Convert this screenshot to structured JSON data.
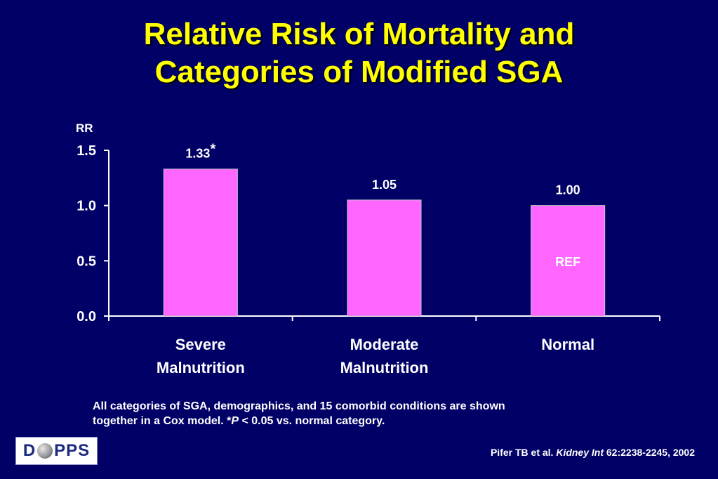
{
  "title": {
    "line1": "Relative Risk of Mortality and",
    "line2": "Categories of Modified SGA"
  },
  "chart_data": {
    "type": "bar",
    "ylabel": "RR",
    "ylim": [
      0,
      1.5
    ],
    "yticks": [
      "0.0",
      "0.5",
      "1.0",
      "1.5"
    ],
    "categories": [
      [
        "Severe",
        "Malnutrition"
      ],
      [
        "Moderate",
        "Malnutrition"
      ],
      [
        "Normal"
      ]
    ],
    "values": [
      1.33,
      1.05,
      1.0
    ],
    "data_labels": [
      "1.33",
      "1.05",
      "1.00"
    ],
    "label_marks": [
      "*",
      "",
      ""
    ],
    "inner_labels": [
      "",
      "",
      "REF"
    ],
    "bar_color": "#ff66ff",
    "axis_color": "#ffffff",
    "grid": false
  },
  "footnote": {
    "line1": "All categories of SGA, demographics, and 15 comorbid conditions are shown",
    "line2_prefix": "together in a Cox model. *",
    "line2_italic": "P",
    "line2_suffix": " < 0.05 vs. normal category."
  },
  "logo": {
    "left": "D",
    "right": "PPS"
  },
  "citation": {
    "prefix": "Pifer TB et al. ",
    "journal": "Kidney Int",
    "suffix": " 62:2238-2245, 2002"
  }
}
